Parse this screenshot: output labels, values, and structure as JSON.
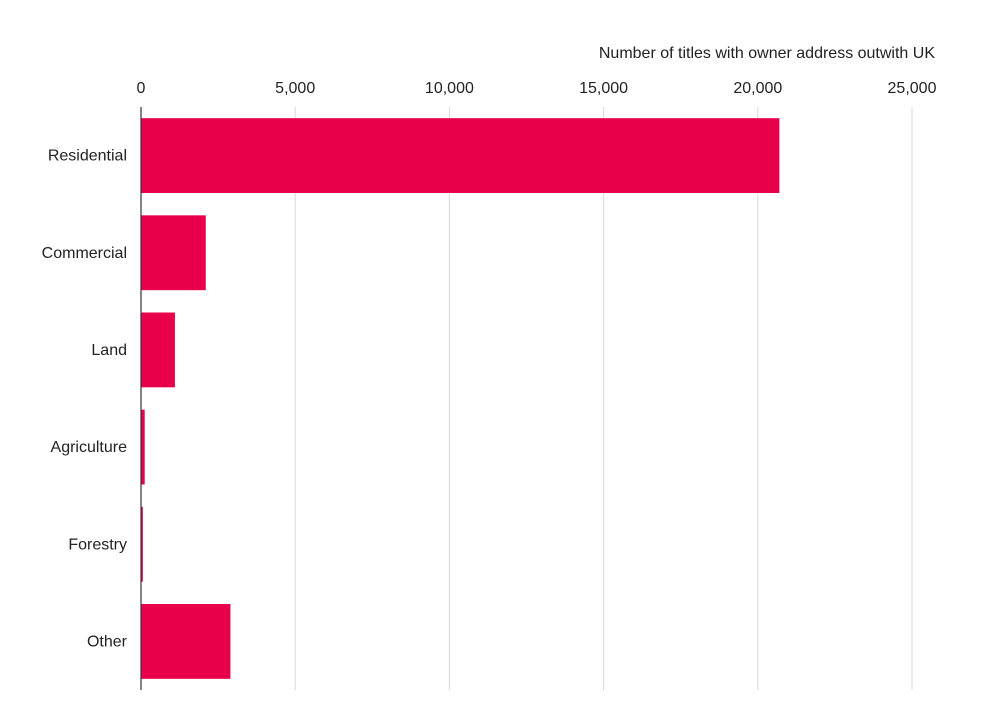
{
  "chart_data": {
    "type": "bar",
    "orientation": "horizontal",
    "xlabel": "Number of titles with owner address outwith UK",
    "ylabel": "",
    "categories": [
      "Residential",
      "Commercial",
      "Land",
      "Agriculture",
      "Forestry",
      "Other"
    ],
    "values": [
      20700,
      2100,
      1100,
      120,
      60,
      2900
    ],
    "xlim": [
      0,
      25000
    ],
    "ticks": [
      0,
      5000,
      10000,
      15000,
      20000,
      25000
    ],
    "tick_labels": [
      "0",
      "5,000",
      "10,000",
      "15,000",
      "20,000",
      "25,000"
    ],
    "x_axis_position": "top",
    "grid": true,
    "bar_color": "#e8004a",
    "grid_color": "#d9d9d9"
  }
}
